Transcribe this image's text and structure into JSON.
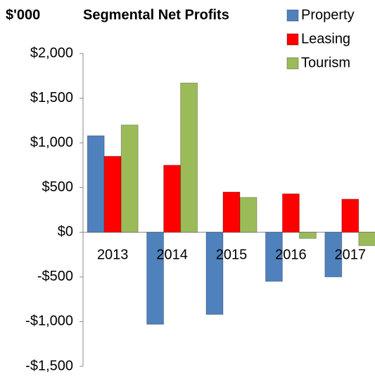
{
  "chart_data": {
    "type": "bar",
    "title": "Segmental Net Profits",
    "y_unit_label": "$'000",
    "categories": [
      "2013",
      "2014",
      "2015",
      "2016",
      "2017"
    ],
    "series": [
      {
        "name": "Property",
        "color": "#4f81bd",
        "values": [
          1080,
          -1030,
          -920,
          -550,
          -500
        ]
      },
      {
        "name": "Leasing",
        "color": "#ff0000",
        "values": [
          850,
          750,
          450,
          430,
          370
        ]
      },
      {
        "name": "Tourism",
        "color": "#9bbb59",
        "values": [
          1200,
          1670,
          390,
          -70,
          -150
        ]
      }
    ],
    "ylim": [
      -1500,
      2000
    ],
    "yticks": [
      {
        "value": -1500,
        "label": "-$1,500"
      },
      {
        "value": -1000,
        "label": "-$1,000"
      },
      {
        "value": -500,
        "label": "-$500"
      },
      {
        "value": 0,
        "label": "$0"
      },
      {
        "value": 500,
        "label": "$500"
      },
      {
        "value": 1000,
        "label": "$1,000"
      },
      {
        "value": 1500,
        "label": "$1,500"
      },
      {
        "value": 2000,
        "label": "$2,000"
      }
    ],
    "grid": false,
    "legend": "top-right"
  }
}
